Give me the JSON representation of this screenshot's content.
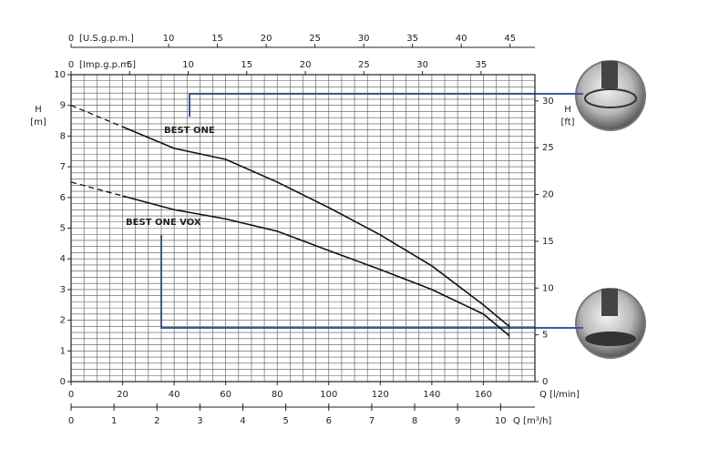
{
  "chart_data": {
    "type": "line",
    "xlabel": "Q [l/min]",
    "xlim": [
      0,
      180
    ],
    "xticks": [
      0,
      20,
      40,
      60,
      80,
      100,
      120,
      140,
      160
    ],
    "x2label": "Q [m³/h]",
    "x2lim": [
      0,
      10.8
    ],
    "x2ticks": [
      0,
      1,
      2,
      3,
      4,
      5,
      6,
      7,
      8,
      9,
      10
    ],
    "x3label": "[U.S.g.p.m.]",
    "x3lim": [
      0,
      47.55
    ],
    "x3ticks": [
      0,
      10,
      15,
      20,
      25,
      30,
      35,
      40,
      45
    ],
    "x4label": "[Imp.g.p.m.]",
    "x4lim": [
      0,
      39.6
    ],
    "x4ticks": [
      0,
      5,
      10,
      15,
      20,
      25,
      30,
      35
    ],
    "ylabel": "H",
    "yunit": "[m]",
    "ylim": [
      0,
      10
    ],
    "yticks": [
      0,
      1,
      2,
      3,
      4,
      5,
      6,
      7,
      8,
      9,
      10
    ],
    "y2label": "H",
    "y2unit": "[ft]",
    "y2lim": [
      0,
      32.81
    ],
    "y2ticks": [
      0,
      5,
      10,
      15,
      20,
      25,
      30
    ],
    "grid": true,
    "xgrid_step": 5,
    "ygrid_step": 0.2,
    "series": [
      {
        "name": "BEST ONE",
        "color": "#111111",
        "dash_first_segment": true,
        "x": [
          0,
          20,
          40,
          60,
          80,
          100,
          120,
          140,
          160,
          170
        ],
        "values": [
          9.0,
          8.3,
          7.6,
          7.24,
          6.5,
          5.67,
          4.78,
          3.77,
          2.5,
          1.8
        ]
      },
      {
        "name": "BEST ONE VOX",
        "color": "#111111",
        "dash_first_segment": true,
        "x": [
          0,
          20,
          40,
          60,
          80,
          100,
          120,
          140,
          160,
          170
        ],
        "values": [
          6.5,
          6.05,
          5.6,
          5.3,
          4.9,
          4.27,
          3.65,
          3.0,
          2.2,
          1.5
        ]
      }
    ]
  }
}
